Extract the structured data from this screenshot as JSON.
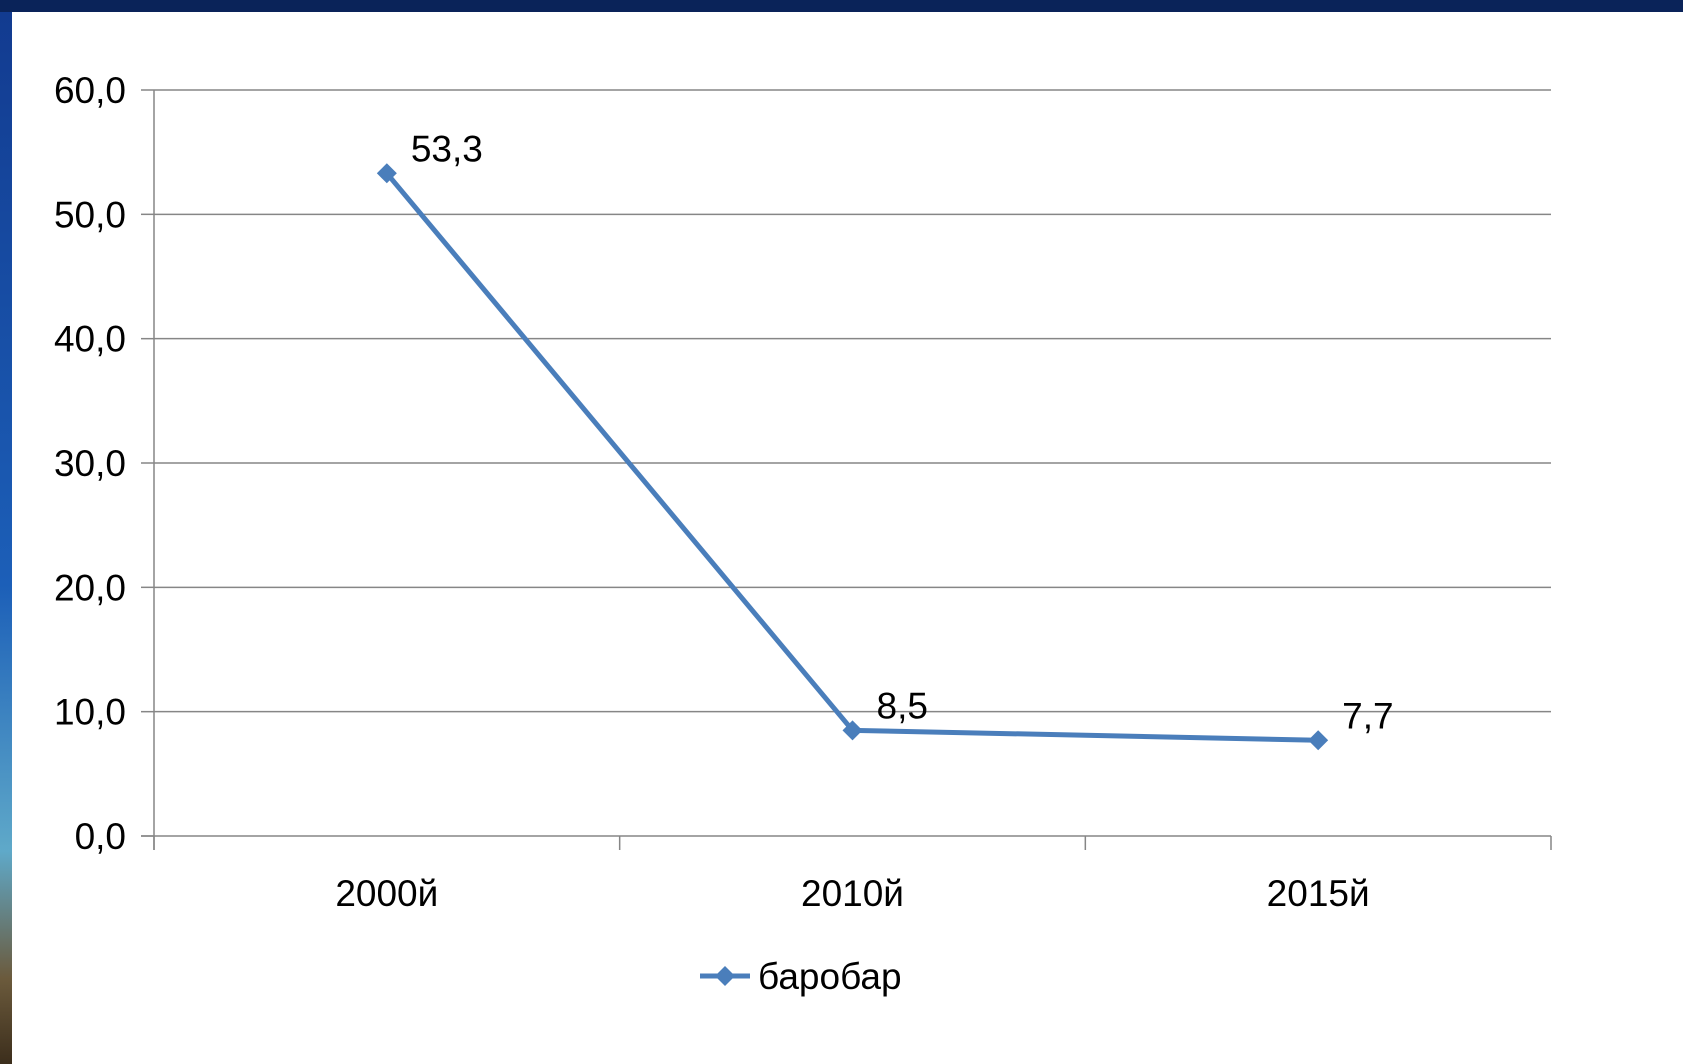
{
  "chart_data": {
    "type": "line",
    "title": "",
    "xlabel": "",
    "ylabel": "",
    "categories": [
      "2000й",
      "2010й",
      "2015й"
    ],
    "series": [
      {
        "name": "баробар",
        "values": [
          53.3,
          8.5,
          7.7
        ],
        "color": "#4a7ebb",
        "marker": "diamond"
      }
    ],
    "data_labels": [
      "53,3",
      "8,5",
      "7,7"
    ],
    "ylim": [
      0,
      60
    ],
    "y_ticks": [
      {
        "value": 0,
        "label": "0,0"
      },
      {
        "value": 10,
        "label": "10,0"
      },
      {
        "value": 20,
        "label": "20,0"
      },
      {
        "value": 30,
        "label": "30,0"
      },
      {
        "value": 40,
        "label": "40,0"
      },
      {
        "value": 50,
        "label": "50,0"
      },
      {
        "value": 60,
        "label": "60,0"
      }
    ],
    "grid": true,
    "legend_position": "bottom",
    "colors": {
      "line": "#4a7ebb",
      "grid": "#868686",
      "axis": "#868686"
    }
  }
}
